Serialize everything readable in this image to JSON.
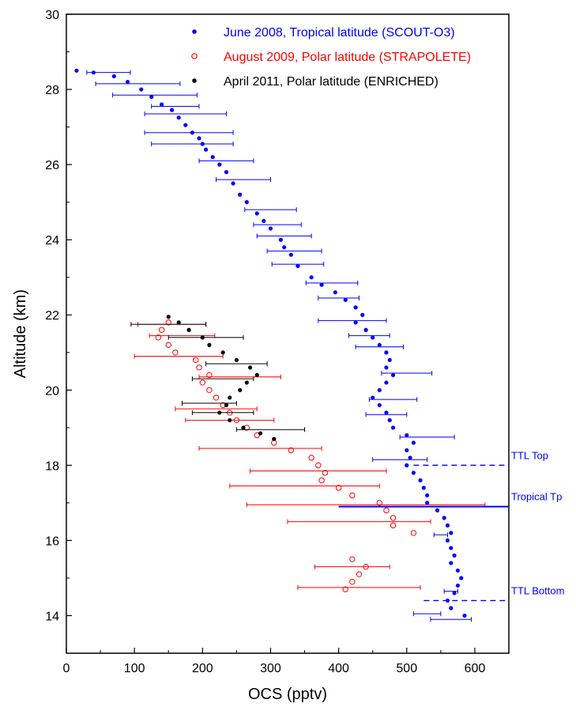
{
  "chart_data": {
    "type": "scatter",
    "xlabel": "OCS (pptv)",
    "ylabel": "Altitude (km)",
    "xlim": [
      0,
      650
    ],
    "ylim": [
      13,
      30
    ],
    "x_ticks": [
      0,
      100,
      200,
      300,
      400,
      500,
      600
    ],
    "y_ticks": [
      14,
      16,
      18,
      20,
      22,
      24,
      26,
      28,
      30
    ],
    "grid": false,
    "legend_position": "top-right",
    "series": [
      {
        "name": "June 2008, Tropical latitude (SCOUT-O3)",
        "color": "#0000ff",
        "marker": "filled-circle",
        "points": [
          [
            15,
            28.5
          ],
          [
            40,
            28.45
          ],
          [
            70,
            28.35
          ],
          [
            90,
            28.2
          ],
          [
            110,
            28.0
          ],
          [
            125,
            27.8
          ],
          [
            140,
            27.6
          ],
          [
            155,
            27.45
          ],
          [
            165,
            27.25
          ],
          [
            175,
            27.05
          ],
          [
            185,
            26.85
          ],
          [
            195,
            26.7
          ],
          [
            200,
            26.55
          ],
          [
            205,
            26.4
          ],
          [
            215,
            26.2
          ],
          [
            225,
            26.0
          ],
          [
            235,
            25.8
          ],
          [
            245,
            25.5
          ],
          [
            255,
            25.2
          ],
          [
            265,
            25.0
          ],
          [
            280,
            24.7
          ],
          [
            290,
            24.5
          ],
          [
            300,
            24.3
          ],
          [
            315,
            24.0
          ],
          [
            320,
            23.8
          ],
          [
            330,
            23.6
          ],
          [
            340,
            23.3
          ],
          [
            360,
            23.0
          ],
          [
            375,
            22.8
          ],
          [
            395,
            22.6
          ],
          [
            410,
            22.4
          ],
          [
            425,
            22.2
          ],
          [
            435,
            22.0
          ],
          [
            425,
            21.8
          ],
          [
            440,
            21.6
          ],
          [
            450,
            21.4
          ],
          [
            460,
            21.2
          ],
          [
            470,
            21.0
          ],
          [
            475,
            20.8
          ],
          [
            470,
            20.6
          ],
          [
            480,
            20.4
          ],
          [
            470,
            20.2
          ],
          [
            460,
            20.0
          ],
          [
            450,
            19.8
          ],
          [
            460,
            19.6
          ],
          [
            470,
            19.4
          ],
          [
            475,
            19.2
          ],
          [
            480,
            19.0
          ],
          [
            500,
            18.8
          ],
          [
            510,
            18.6
          ],
          [
            500,
            18.4
          ],
          [
            505,
            18.2
          ],
          [
            500,
            18.0
          ],
          [
            510,
            17.8
          ],
          [
            520,
            17.6
          ],
          [
            525,
            17.4
          ],
          [
            530,
            17.2
          ],
          [
            530,
            17.0
          ],
          [
            545,
            16.8
          ],
          [
            555,
            16.6
          ],
          [
            560,
            16.4
          ],
          [
            565,
            16.2
          ],
          [
            560,
            16.0
          ],
          [
            565,
            15.8
          ],
          [
            570,
            15.6
          ],
          [
            565,
            15.4
          ],
          [
            575,
            15.2
          ],
          [
            580,
            15.0
          ],
          [
            575,
            14.8
          ],
          [
            570,
            14.6
          ],
          [
            560,
            14.4
          ],
          [
            565,
            14.2
          ],
          [
            585,
            14.0
          ]
        ],
        "error_bars": [
          [
            62,
            28.45,
            32
          ],
          [
            105,
            28.15,
            62
          ],
          [
            130,
            27.85,
            62
          ],
          [
            160,
            27.55,
            35
          ],
          [
            175,
            27.35,
            60
          ],
          [
            180,
            26.85,
            65
          ],
          [
            185,
            26.55,
            60
          ],
          [
            235,
            26.1,
            40
          ],
          [
            260,
            25.6,
            40
          ],
          [
            300,
            24.8,
            38
          ],
          [
            310,
            24.4,
            35
          ],
          [
            320,
            24.1,
            40
          ],
          [
            335,
            23.7,
            40
          ],
          [
            340,
            23.35,
            38
          ],
          [
            390,
            22.85,
            38
          ],
          [
            400,
            22.45,
            30
          ],
          [
            420,
            21.85,
            50
          ],
          [
            445,
            21.45,
            30
          ],
          [
            460,
            21.15,
            35
          ],
          [
            500,
            20.45,
            37
          ],
          [
            480,
            19.75,
            35
          ],
          [
            470,
            19.35,
            30
          ],
          [
            530,
            18.75,
            40
          ],
          [
            490,
            18.15,
            40
          ],
          [
            550,
            16.15,
            10
          ],
          [
            565,
            14.65,
            10
          ],
          [
            530,
            14.05,
            20
          ],
          [
            565,
            13.9,
            30
          ]
        ]
      },
      {
        "name": "August 2009, Polar latitude (STRAPOLETE)",
        "color": "#ff0000",
        "marker": "open-circle",
        "points": [
          [
            150,
            21.8
          ],
          [
            140,
            21.6
          ],
          [
            135,
            21.4
          ],
          [
            150,
            21.2
          ],
          [
            160,
            21.0
          ],
          [
            190,
            20.8
          ],
          [
            195,
            20.6
          ],
          [
            210,
            20.4
          ],
          [
            200,
            20.2
          ],
          [
            210,
            20.0
          ],
          [
            220,
            19.8
          ],
          [
            230,
            19.6
          ],
          [
            240,
            19.4
          ],
          [
            250,
            19.2
          ],
          [
            265,
            19.0
          ],
          [
            280,
            18.8
          ],
          [
            305,
            18.6
          ],
          [
            330,
            18.4
          ],
          [
            360,
            18.2
          ],
          [
            370,
            18.0
          ],
          [
            380,
            17.8
          ],
          [
            375,
            17.6
          ],
          [
            400,
            17.4
          ],
          [
            420,
            17.2
          ],
          [
            460,
            17.0
          ],
          [
            470,
            16.8
          ],
          [
            480,
            16.6
          ],
          [
            480,
            16.4
          ],
          [
            510,
            16.2
          ],
          [
            420,
            15.5
          ],
          [
            440,
            15.3
          ],
          [
            430,
            15.1
          ],
          [
            420,
            14.9
          ],
          [
            410,
            14.7
          ]
        ],
        "error_bars": [
          [
            155,
            21.75,
            50
          ],
          [
            170,
            21.45,
            48
          ],
          [
            165,
            20.9,
            65
          ],
          [
            255,
            20.35,
            60
          ],
          [
            220,
            19.5,
            60
          ],
          [
            240,
            19.2,
            65
          ],
          [
            285,
            18.45,
            90
          ],
          [
            370,
            17.85,
            100
          ],
          [
            350,
            17.45,
            110
          ],
          [
            440,
            16.95,
            175
          ],
          [
            430,
            16.5,
            105
          ],
          [
            420,
            15.3,
            55
          ],
          [
            430,
            14.75,
            90
          ]
        ]
      },
      {
        "name": "April 2011, Polar latitude (ENRICHED)",
        "color": "#000000",
        "marker": "filled-circle",
        "points": [
          [
            150,
            21.95
          ],
          [
            165,
            21.8
          ],
          [
            180,
            21.6
          ],
          [
            200,
            21.4
          ],
          [
            210,
            21.2
          ],
          [
            230,
            21.0
          ],
          [
            250,
            20.8
          ],
          [
            270,
            20.6
          ],
          [
            280,
            20.4
          ],
          [
            265,
            20.2
          ],
          [
            255,
            20.0
          ],
          [
            240,
            19.8
          ],
          [
            235,
            19.6
          ],
          [
            225,
            19.4
          ],
          [
            240,
            19.2
          ],
          [
            260,
            19.0
          ],
          [
            285,
            18.85
          ],
          [
            305,
            18.7
          ]
        ],
        "error_bars": [
          [
            150,
            21.75,
            55
          ],
          [
            205,
            21.4,
            55
          ],
          [
            250,
            20.7,
            45
          ],
          [
            230,
            20.3,
            45
          ],
          [
            210,
            19.65,
            40
          ],
          [
            230,
            19.4,
            45
          ],
          [
            300,
            18.95,
            50
          ]
        ]
      }
    ],
    "annotations": [
      {
        "label": "TTL Top",
        "y": 18.0,
        "x_start": 510,
        "style": "dashed"
      },
      {
        "label": "Tropical Tp",
        "y": 16.9,
        "x_start": 400,
        "style": "solid"
      },
      {
        "label": "TTL Bottom",
        "y": 14.4,
        "x_start": 525,
        "style": "dashed"
      }
    ]
  }
}
